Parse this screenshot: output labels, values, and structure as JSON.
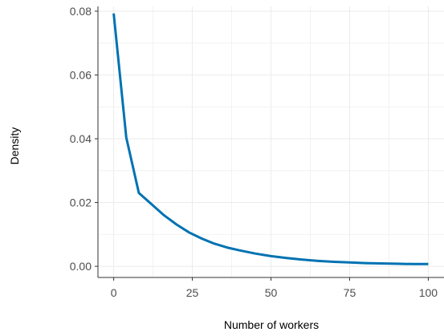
{
  "chart_data": {
    "type": "line",
    "title": "",
    "xlabel": "Number of workers",
    "ylabel": "Density",
    "xlim": [
      -5,
      105
    ],
    "ylim": [
      -0.0035,
      0.0815
    ],
    "x_ticks": [
      0,
      25,
      50,
      75,
      100
    ],
    "x_tick_labels": [
      "0",
      "25",
      "50",
      "75",
      "100"
    ],
    "y_ticks": [
      0.0,
      0.02,
      0.04,
      0.06,
      0.08
    ],
    "y_tick_labels": [
      "0.00",
      "0.02",
      "0.04",
      "0.06",
      "0.08"
    ],
    "grid": true,
    "legend": "none",
    "series": [
      {
        "color": "#0072B2",
        "x": [
          0,
          4,
          8,
          12,
          16,
          20,
          24,
          28,
          32,
          36,
          40,
          45,
          50,
          55,
          60,
          65,
          70,
          75,
          80,
          85,
          90,
          95,
          100
        ],
        "y": [
          0.0793,
          0.0404,
          0.023,
          0.0195,
          0.016,
          0.0131,
          0.0106,
          0.0087,
          0.0071,
          0.0059,
          0.005,
          0.004,
          0.0032,
          0.0026,
          0.0021,
          0.0017,
          0.0014,
          0.0012,
          0.001,
          0.0009,
          0.0008,
          0.0007,
          0.0007
        ]
      }
    ]
  }
}
